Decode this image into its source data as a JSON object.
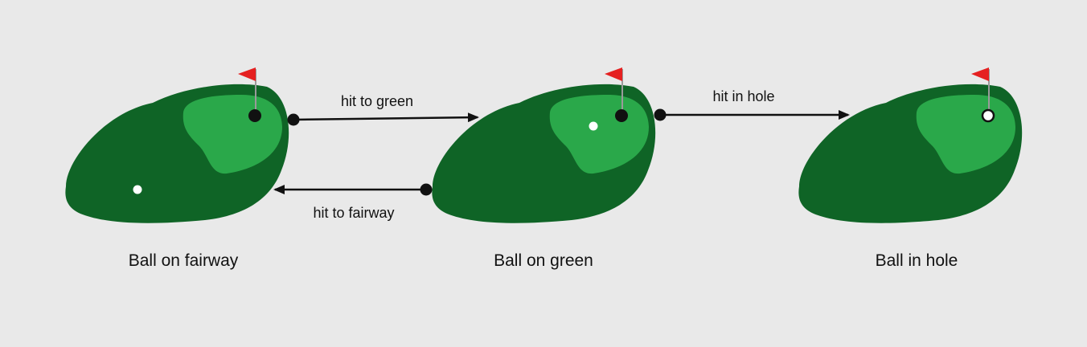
{
  "colors": {
    "background": "#e9e9e9",
    "fairway": "#0f6426",
    "green": "#2aa84a",
    "flag": "#e52020",
    "flag_pole": "#9a9a9a",
    "hole": "#111111",
    "ball": "#ffffff",
    "arrow": "#111111"
  },
  "states": [
    {
      "label": "Ball on fairway",
      "ball_location": "fairway"
    },
    {
      "label": "Ball on green",
      "ball_location": "green"
    },
    {
      "label": "Ball in hole",
      "ball_location": "hole"
    }
  ],
  "transitions": [
    {
      "label": "hit to green",
      "from": "Ball on fairway",
      "to": "Ball on green"
    },
    {
      "label": "hit to fairway",
      "from": "Ball on green",
      "to": "Ball on fairway"
    },
    {
      "label": "hit in hole",
      "from": "Ball on green",
      "to": "Ball in hole"
    }
  ],
  "icons": [
    "flag-icon",
    "hole-icon",
    "ball-icon"
  ]
}
